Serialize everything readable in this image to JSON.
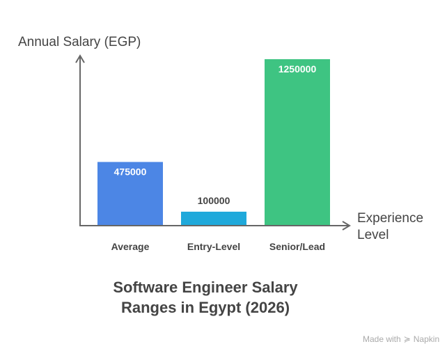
{
  "chart_data": {
    "type": "bar",
    "title": "Software Engineer Salary Ranges in Egypt (2026)",
    "title_lines": [
      "Software Engineer Salary",
      "Ranges in Egypt (2026)"
    ],
    "ylabel": "Annual Salary (EGP)",
    "xlabel": "Experience Level",
    "xlabel_lines": [
      "Experience",
      "Level"
    ],
    "categories": [
      "Average",
      "Entry-Level",
      "Senior/Lead"
    ],
    "values": [
      475000,
      100000,
      1250000
    ],
    "colors": [
      "#4C86E5",
      "#1FA9DB",
      "#3EC482"
    ],
    "ylim": [
      0,
      1250000
    ],
    "grid": false,
    "legend": "none"
  },
  "watermark": {
    "text": "Made with",
    "brand": "Napkin"
  }
}
